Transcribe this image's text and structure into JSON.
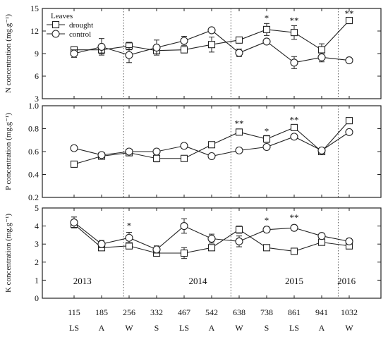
{
  "chart_data": {
    "type": "line",
    "x_tick_labels": [
      "115",
      "185",
      "256",
      "332",
      "467",
      "542",
      "638",
      "738",
      "861",
      "941",
      "1032"
    ],
    "season_labels": [
      "LS",
      "A",
      "W",
      "S",
      "LS",
      "A",
      "W",
      "S",
      "LS",
      "A",
      "W"
    ],
    "year_labels": [
      {
        "text": "2013",
        "at": 0.3
      },
      {
        "text": "2014",
        "at": 4.5
      },
      {
        "text": "2015",
        "at": 8.0
      },
      {
        "text": "2016",
        "at": 9.9
      }
    ],
    "year_dividers": [
      1.8,
      5.7,
      9.6
    ],
    "legend": {
      "title": "Leaves"
    },
    "panels": [
      {
        "ylabel": "N concentration (mg.g⁻¹)",
        "ylim": [
          3,
          15
        ],
        "yticks": [
          3,
          6,
          9,
          12,
          15
        ],
        "tick_decimals": 0,
        "show_legend": true,
        "series": [
          {
            "name": "drought",
            "marker": "square",
            "values": [
              9.5,
              9.5,
              10.0,
              9.4,
              9.5,
              10.2,
              10.8,
              12.2,
              11.8,
              9.5,
              13.4
            ],
            "errors": [
              0.4,
              0.5,
              0.5,
              0.4,
              0.4,
              1.0,
              0.3,
              0.8,
              0.9,
              0.8,
              0.3
            ]
          },
          {
            "name": "control",
            "marker": "circle",
            "values": [
              9.0,
              9.9,
              8.8,
              9.8,
              10.7,
              12.1,
              9.1,
              10.6,
              7.8,
              8.5,
              8.1
            ],
            "errors": [
              0.5,
              1.1,
              1.0,
              1.0,
              0.6,
              0.3,
              0.5,
              0.3,
              0.8,
              0.6,
              0.3
            ]
          }
        ],
        "significance": [
          {
            "index": 7,
            "text": "*",
            "value": 13.3
          },
          {
            "index": 8,
            "text": "**",
            "value": 13.0
          },
          {
            "index": 10,
            "text": "**",
            "value": 13.9
          }
        ]
      },
      {
        "ylabel": "P concentration (mg.g⁻¹)",
        "ylim": [
          0.2,
          1.0
        ],
        "yticks": [
          0.2,
          0.4,
          0.6,
          0.8,
          1.0
        ],
        "tick_decimals": 1,
        "show_legend": false,
        "series": [
          {
            "name": "drought",
            "marker": "square",
            "values": [
              0.49,
              0.56,
              0.59,
              0.54,
              0.54,
              0.66,
              0.77,
              0.71,
              0.81,
              0.6,
              0.87
            ],
            "errors": [
              0.01,
              0.02,
              0.02,
              0.03,
              0.01,
              0.02,
              0.02,
              0.03,
              0.02,
              0.02,
              0.02
            ]
          },
          {
            "name": "control",
            "marker": "circle",
            "values": [
              0.63,
              0.57,
              0.6,
              0.6,
              0.65,
              0.56,
              0.61,
              0.64,
              0.73,
              0.61,
              0.77
            ],
            "errors": [
              0.01,
              0.02,
              0.02,
              0.02,
              0.02,
              0.02,
              0.02,
              0.02,
              0.02,
              0.02,
              0.02
            ]
          }
        ],
        "significance": [
          {
            "index": 6,
            "text": "**",
            "value": 0.82
          },
          {
            "index": 7,
            "text": "*",
            "value": 0.75
          },
          {
            "index": 8,
            "text": "**",
            "value": 0.85
          }
        ]
      },
      {
        "ylabel": "K concentration (mg.g⁻¹)",
        "ylim": [
          0,
          5
        ],
        "yticks": [
          0,
          1,
          2,
          3,
          4,
          5
        ],
        "tick_decimals": 0,
        "show_legend": false,
        "series": [
          {
            "name": "drought",
            "marker": "square",
            "values": [
              4.1,
              2.8,
              2.9,
              2.5,
              2.5,
              2.8,
              3.8,
              2.8,
              2.6,
              3.1,
              2.9
            ],
            "errors": [
              0.2,
              0.15,
              0.15,
              0.15,
              0.3,
              0.15,
              0.2,
              0.1,
              0.1,
              0.1,
              0.1
            ]
          },
          {
            "name": "control",
            "marker": "circle",
            "values": [
              4.2,
              3.0,
              3.35,
              2.7,
              4.0,
              3.3,
              3.15,
              3.8,
              3.9,
              3.45,
              3.15
            ],
            "errors": [
              0.3,
              0.2,
              0.3,
              0.2,
              0.4,
              0.25,
              0.3,
              0.15,
              0.15,
              0.15,
              0.15
            ]
          }
        ],
        "significance": [
          {
            "index": 2,
            "text": "*",
            "value": 3.85
          },
          {
            "index": 7,
            "text": "*",
            "value": 4.15
          },
          {
            "index": 8,
            "text": "**",
            "value": 4.3
          }
        ]
      }
    ]
  }
}
